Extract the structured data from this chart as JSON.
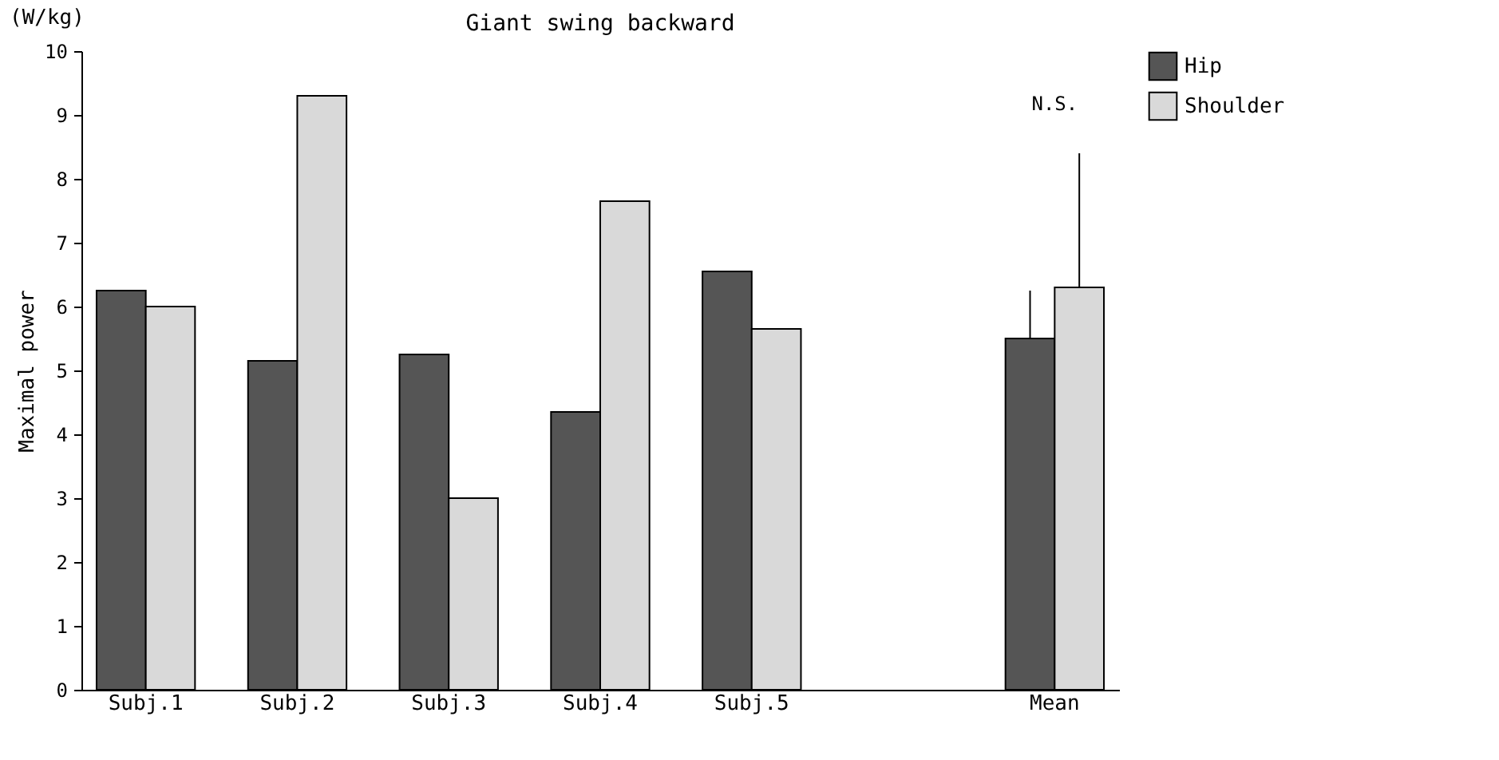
{
  "chart_data": {
    "type": "bar",
    "title": "Giant swing backward",
    "ylabel": "Maximal power",
    "categories": [
      "Subj.1",
      "Subj.2",
      "Subj.3",
      "Subj.4",
      "Subj.5",
      null,
      "Mean"
    ],
    "series": [
      {
        "name": "Hip",
        "color": "#555555",
        "values": [
          6.25,
          5.15,
          5.25,
          4.35,
          6.55,
          null,
          5.5
        ],
        "errors": [
          null,
          null,
          null,
          null,
          null,
          null,
          [
            5.5,
            6.25
          ]
        ]
      },
      {
        "name": "Shoulder",
        "color": "#d9d9d9",
        "values": [
          6.0,
          9.3,
          3.0,
          7.65,
          5.65,
          null,
          6.3
        ],
        "errors": [
          null,
          null,
          null,
          null,
          null,
          null,
          [
            6.3,
            8.4
          ]
        ]
      }
    ],
    "ylim": [
      0,
      10
    ],
    "yticks": [
      0,
      1,
      2,
      3,
      4,
      5,
      6,
      7,
      8,
      9,
      10
    ],
    "grid": false,
    "legend": "top right",
    "annotations": [
      "(W/kg)",
      "N.S."
    ]
  }
}
